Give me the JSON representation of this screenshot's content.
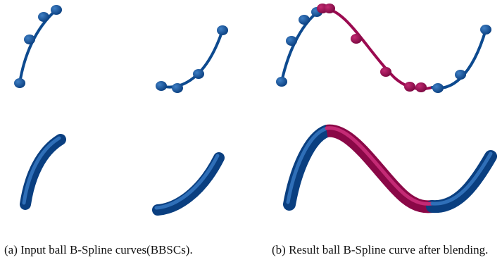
{
  "captions": {
    "a": "(a) Input ball B-Spline curves(BBSCs).",
    "b": "(b) Result ball B-Spline curve after blending."
  }
}
